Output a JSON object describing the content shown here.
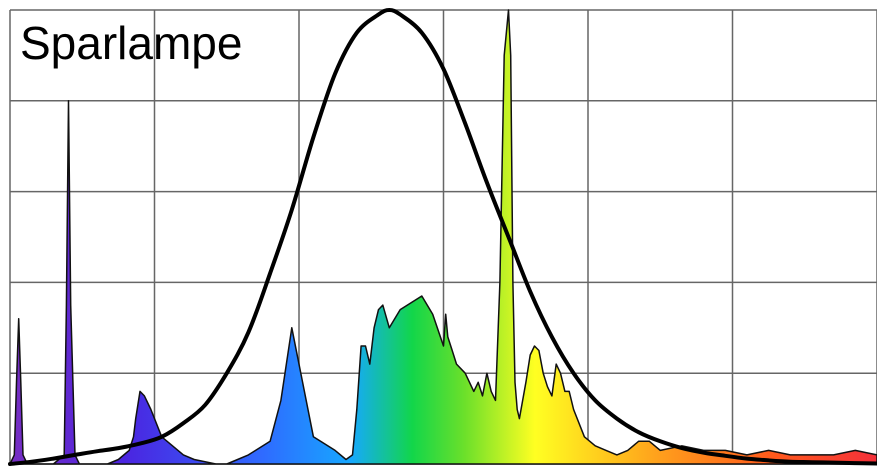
{
  "chart_data": {
    "type": "area",
    "title": "Sparlampe",
    "xlabel": "",
    "ylabel": "",
    "xlim": [
      380,
      780
    ],
    "ylim": [
      0,
      1.0
    ],
    "grid": true,
    "gridlines": {
      "x_count": 6,
      "y_count": 5
    },
    "series": [
      {
        "role": "emission-spectrum",
        "fill": "rainbow",
        "x": [
          380,
          382,
          383,
          384,
          385,
          386,
          388,
          400,
          405,
          406,
          407,
          408,
          410,
          412,
          420,
          425,
          430,
          435,
          437,
          438,
          440,
          442,
          445,
          450,
          460,
          465,
          475,
          480,
          485,
          490,
          500,
          505,
          510,
          520,
          530,
          535,
          538,
          540,
          542,
          544,
          546,
          548,
          550,
          552,
          555,
          560,
          570,
          575,
          580,
          581,
          582,
          584,
          586,
          590,
          592,
          594,
          596,
          598,
          600,
          602,
          604,
          606,
          608,
          610,
          611,
          612,
          613,
          614,
          615,
          618,
          620,
          622,
          624,
          626,
          628,
          630,
          632,
          634,
          636,
          638,
          640,
          645,
          650,
          655,
          660,
          665,
          670,
          675,
          680,
          690,
          700,
          710,
          720,
          730,
          740,
          750,
          760,
          770,
          780
        ],
        "values": [
          0,
          0.02,
          0.18,
          0.32,
          0.18,
          0.02,
          0,
          0,
          0.02,
          0.35,
          0.8,
          0.35,
          0.02,
          0,
          0,
          0,
          0.01,
          0.03,
          0.06,
          0.1,
          0.16,
          0.15,
          0.12,
          0.06,
          0.02,
          0.01,
          0,
          0,
          0.01,
          0.02,
          0.05,
          0.14,
          0.3,
          0.06,
          0.03,
          0.01,
          0.02,
          0.12,
          0.26,
          0.26,
          0.22,
          0.3,
          0.34,
          0.35,
          0.3,
          0.34,
          0.37,
          0.33,
          0.26,
          0.33,
          0.28,
          0.25,
          0.22,
          0.2,
          0.18,
          0.16,
          0.18,
          0.15,
          0.2,
          0.16,
          0.14,
          0.4,
          0.9,
          1.0,
          0.9,
          0.4,
          0.18,
          0.12,
          0.1,
          0.18,
          0.24,
          0.26,
          0.25,
          0.2,
          0.17,
          0.15,
          0.22,
          0.2,
          0.16,
          0.16,
          0.12,
          0.06,
          0.04,
          0.03,
          0.02,
          0.03,
          0.05,
          0.05,
          0.03,
          0.04,
          0.03,
          0.03,
          0.02,
          0.03,
          0.02,
          0.02,
          0.02,
          0.03,
          0.02
        ]
      },
      {
        "role": "sensitivity-curve",
        "color": "#000000",
        "x": [
          380,
          390,
          400,
          410,
          420,
          430,
          440,
          450,
          460,
          470,
          480,
          490,
          500,
          510,
          520,
          530,
          540,
          550,
          555,
          560,
          570,
          580,
          590,
          600,
          610,
          620,
          630,
          640,
          650,
          660,
          670,
          680,
          690,
          700,
          710,
          720,
          730,
          740,
          750,
          760,
          770,
          780
        ],
        "values": [
          0.0,
          0.005,
          0.012,
          0.02,
          0.028,
          0.035,
          0.045,
          0.06,
          0.09,
          0.13,
          0.2,
          0.29,
          0.42,
          0.56,
          0.72,
          0.86,
          0.95,
          0.99,
          1.0,
          0.99,
          0.95,
          0.87,
          0.75,
          0.62,
          0.5,
          0.38,
          0.28,
          0.2,
          0.14,
          0.1,
          0.07,
          0.05,
          0.035,
          0.025,
          0.018,
          0.012,
          0.008,
          0.005,
          0.004,
          0.003,
          0.002,
          0.001
        ]
      }
    ]
  }
}
